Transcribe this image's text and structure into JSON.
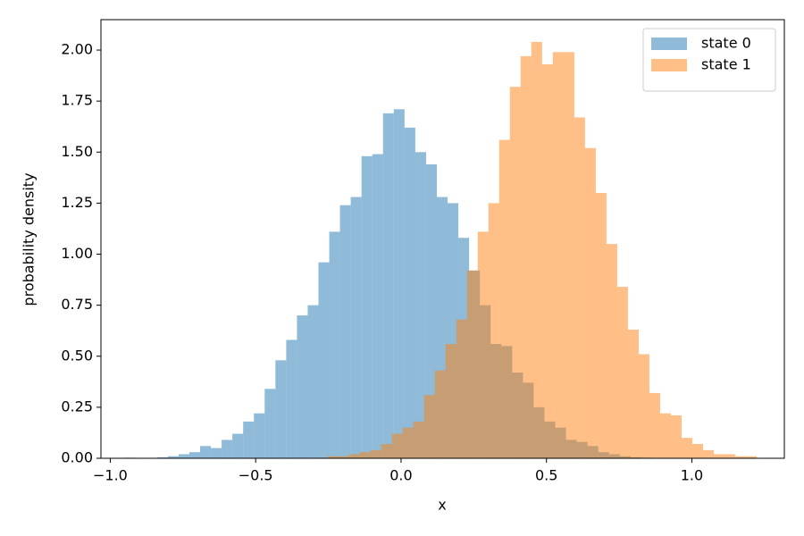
{
  "chart_data": {
    "type": "histogram",
    "xlabel": "x",
    "ylabel": "probability density",
    "xlim": [
      -1.032,
      1.318
    ],
    "ylim": [
      0,
      2.149
    ],
    "xticks": [
      {
        "value": -1.0,
        "label": "−1.0"
      },
      {
        "value": -0.5,
        "label": "−0.5"
      },
      {
        "value": 0.0,
        "label": "0.0"
      },
      {
        "value": 0.5,
        "label": "0.5"
      },
      {
        "value": 1.0,
        "label": "1.0"
      }
    ],
    "yticks": [
      {
        "value": 0,
        "label": "0.00"
      },
      {
        "value": 0.25,
        "label": "0.25"
      },
      {
        "value": 0.5,
        "label": "0.50"
      },
      {
        "value": 0.75,
        "label": "0.75"
      },
      {
        "value": 1.0,
        "label": "1.00"
      },
      {
        "value": 1.25,
        "label": "1.25"
      },
      {
        "value": 1.5,
        "label": "1.50"
      },
      {
        "value": 1.75,
        "label": "1.75"
      },
      {
        "value": 2.0,
        "label": "2.00"
      }
    ],
    "legend": "upper right",
    "opacity": 0.5,
    "series": [
      {
        "name": "state 0",
        "color": "#1f77b4",
        "bins": [
          -0.95,
          -0.913,
          -0.876,
          -0.839,
          -0.802,
          -0.765,
          -0.728,
          -0.691,
          -0.654,
          -0.617,
          -0.58,
          -0.543,
          -0.506,
          -0.469,
          -0.432,
          -0.395,
          -0.358,
          -0.321,
          -0.284,
          -0.247,
          -0.21,
          -0.173,
          -0.136,
          -0.099,
          -0.062,
          -0.025,
          0.012,
          0.049,
          0.086,
          0.123,
          0.16,
          0.197,
          0.234,
          0.271,
          0.308,
          0.345,
          0.382,
          0.419,
          0.456,
          0.493,
          0.53,
          0.567,
          0.604,
          0.641,
          0.678,
          0.715,
          0.752,
          0.789,
          0.826,
          0.863,
          0.9
        ],
        "values": [
          0.003,
          0,
          0,
          0.005,
          0.01,
          0.02,
          0.03,
          0.06,
          0.05,
          0.09,
          0.12,
          0.18,
          0.22,
          0.34,
          0.48,
          0.58,
          0.7,
          0.75,
          0.96,
          1.11,
          1.24,
          1.28,
          1.48,
          1.49,
          1.69,
          1.71,
          1.62,
          1.5,
          1.44,
          1.28,
          1.25,
          1.08,
          0.92,
          0.75,
          0.56,
          0.55,
          0.42,
          0.37,
          0.25,
          0.18,
          0.15,
          0.09,
          0.08,
          0.06,
          0.03,
          0.02,
          0.01,
          0.005,
          0.003,
          0.002
        ]
      },
      {
        "name": "state 1",
        "color": "#ff7f0e",
        "bins": [
          -0.622,
          -0.5851,
          -0.5482,
          -0.5113,
          -0.4744,
          -0.4375,
          -0.4006,
          -0.3637,
          -0.3268,
          -0.2899,
          -0.253,
          -0.2161,
          -0.1792,
          -0.1423,
          -0.1054,
          -0.0685,
          -0.0316,
          0.0053,
          0.0422,
          0.0791,
          0.116,
          0.1529,
          0.1898,
          0.2267,
          0.2636,
          0.3005,
          0.3374,
          0.3743,
          0.4112,
          0.4481,
          0.485,
          0.5219,
          0.5588,
          0.5957,
          0.6326,
          0.6695,
          0.7064,
          0.7433,
          0.7802,
          0.8171,
          0.854,
          0.8909,
          0.9278,
          0.9647,
          1.0016,
          1.0385,
          1.0754,
          1.1123,
          1.1492,
          1.1861,
          1.223
        ],
        "values": [
          0,
          0,
          0,
          0,
          0,
          0,
          0,
          0,
          0,
          0,
          0.01,
          0.01,
          0.02,
          0.03,
          0.04,
          0.07,
          0.12,
          0.15,
          0.18,
          0.31,
          0.43,
          0.56,
          0.68,
          0.92,
          1.11,
          1.25,
          1.56,
          1.82,
          1.97,
          2.04,
          1.93,
          1.99,
          1.99,
          1.67,
          1.52,
          1.3,
          1.05,
          0.84,
          0.63,
          0.51,
          0.32,
          0.22,
          0.21,
          0.1,
          0.07,
          0.04,
          0.02,
          0.02,
          0.01,
          0.01
        ]
      }
    ]
  }
}
